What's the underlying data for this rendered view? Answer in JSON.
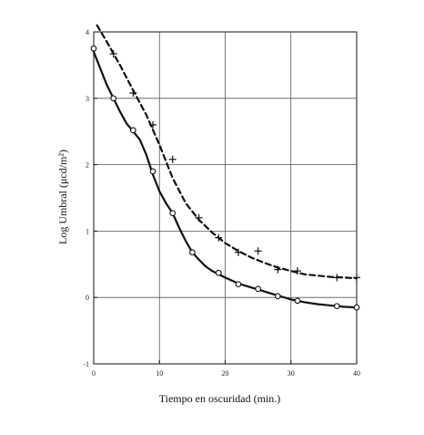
{
  "chart_data": {
    "type": "line",
    "title": "",
    "xlabel": "Tiempo en oscuridad (min.)",
    "ylabel": "Log Umbral (μcd/m²)",
    "xlim": [
      0,
      40
    ],
    "ylim": [
      -1,
      4
    ],
    "x_ticks": [
      0,
      10,
      20,
      30,
      40
    ],
    "x_tick_labels": [
      "0",
      "10",
      "20",
      "30",
      "40"
    ],
    "y_ticks": [
      -1,
      0,
      1,
      2,
      3,
      4
    ],
    "y_tick_labels": [
      "-1",
      "0",
      "1",
      "2",
      "3",
      "4"
    ],
    "grid": true,
    "legend": "none",
    "series": [
      {
        "style": "dashed",
        "marker": "plus",
        "color": "#111111",
        "points": [
          [
            3,
            3.67
          ],
          [
            6,
            3.08
          ],
          [
            9,
            2.6
          ],
          [
            12,
            2.08
          ],
          [
            16,
            1.2
          ],
          [
            19,
            0.9
          ],
          [
            22,
            0.68
          ],
          [
            25,
            0.7
          ],
          [
            28,
            0.42
          ],
          [
            31,
            0.4
          ],
          [
            37,
            0.3
          ],
          [
            40,
            0.3
          ]
        ],
        "curve": [
          [
            0.5,
            4.1
          ],
          [
            2,
            3.85
          ],
          [
            4,
            3.5
          ],
          [
            6,
            3.12
          ],
          [
            8,
            2.75
          ],
          [
            10,
            2.3
          ],
          [
            12,
            1.8
          ],
          [
            14,
            1.42
          ],
          [
            16,
            1.17
          ],
          [
            18,
            0.98
          ],
          [
            20,
            0.82
          ],
          [
            22,
            0.7
          ],
          [
            24,
            0.6
          ],
          [
            26,
            0.52
          ],
          [
            28,
            0.45
          ],
          [
            30,
            0.4
          ],
          [
            32,
            0.35
          ],
          [
            34,
            0.33
          ],
          [
            36,
            0.31
          ],
          [
            38,
            0.3
          ],
          [
            40,
            0.29
          ]
        ]
      },
      {
        "style": "solid",
        "marker": "circle",
        "color": "#111111",
        "points": [
          [
            0,
            3.75
          ],
          [
            3,
            3.0
          ],
          [
            6,
            2.52
          ],
          [
            9,
            1.9
          ],
          [
            12,
            1.27
          ],
          [
            15,
            0.68
          ],
          [
            19,
            0.37
          ],
          [
            22,
            0.2
          ],
          [
            25,
            0.13
          ],
          [
            28,
            0.02
          ],
          [
            31,
            -0.05
          ],
          [
            37,
            -0.13
          ],
          [
            40,
            -0.15
          ]
        ],
        "curve": [
          [
            0,
            3.7
          ],
          [
            1,
            3.45
          ],
          [
            2,
            3.2
          ],
          [
            3,
            3.0
          ],
          [
            4,
            2.8
          ],
          [
            5,
            2.62
          ],
          [
            6,
            2.5
          ],
          [
            7,
            2.38
          ],
          [
            8,
            2.15
          ],
          [
            9,
            1.85
          ],
          [
            10,
            1.6
          ],
          [
            11,
            1.42
          ],
          [
            12,
            1.27
          ],
          [
            13,
            1.05
          ],
          [
            14,
            0.85
          ],
          [
            15,
            0.68
          ],
          [
            16,
            0.57
          ],
          [
            17,
            0.47
          ],
          [
            18,
            0.4
          ],
          [
            19,
            0.35
          ],
          [
            20,
            0.3
          ],
          [
            22,
            0.21
          ],
          [
            24,
            0.15
          ],
          [
            26,
            0.09
          ],
          [
            28,
            0.03
          ],
          [
            30,
            -0.03
          ],
          [
            32,
            -0.07
          ],
          [
            34,
            -0.1
          ],
          [
            36,
            -0.12
          ],
          [
            38,
            -0.14
          ],
          [
            40,
            -0.15
          ]
        ]
      }
    ]
  }
}
